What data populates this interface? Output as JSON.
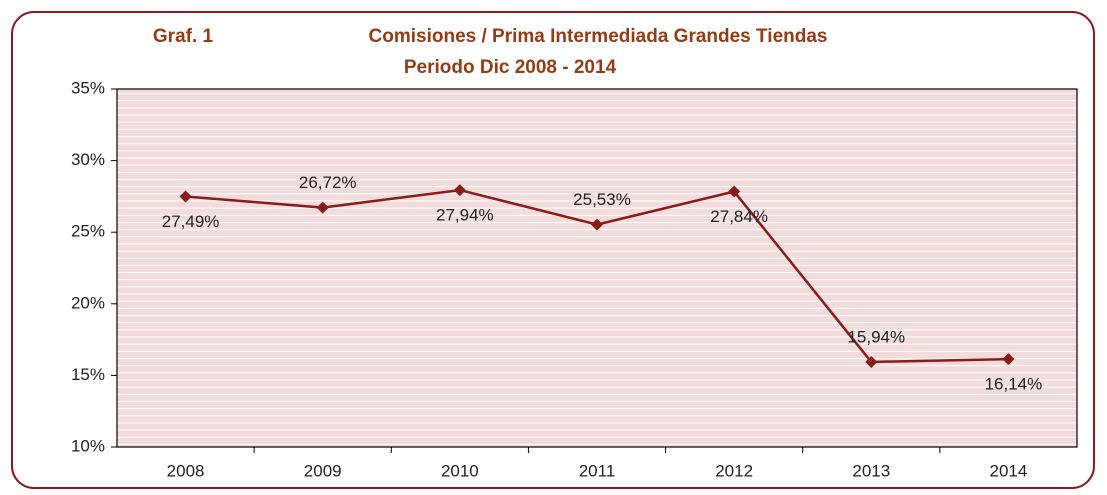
{
  "chart_data": {
    "type": "line",
    "label": "Graf. 1",
    "title": "Comisiones / Prima Intermediada Grandes Tiendas",
    "subtitle": "Periodo Dic 2008 - 2014",
    "categories": [
      "2008",
      "2009",
      "2010",
      "2011",
      "2012",
      "2013",
      "2014"
    ],
    "series": [
      {
        "name": "Comisiones / Prima Intermediada",
        "color": "#8b1a1a",
        "values": [
          27.49,
          26.72,
          27.94,
          25.53,
          27.84,
          15.94,
          16.14
        ],
        "value_labels": [
          "27,49%",
          "26,72%",
          "27,94%",
          "25,53%",
          "27,84%",
          "15,94%",
          "16,14%"
        ]
      }
    ],
    "ylim": [
      10,
      35
    ],
    "yticks": [
      {
        "value": 10,
        "label": "10%"
      },
      {
        "value": 15,
        "label": "15%"
      },
      {
        "value": 20,
        "label": "20%"
      },
      {
        "value": 25,
        "label": "25%"
      },
      {
        "value": 30,
        "label": "30%"
      },
      {
        "value": 35,
        "label": "35%"
      }
    ]
  }
}
